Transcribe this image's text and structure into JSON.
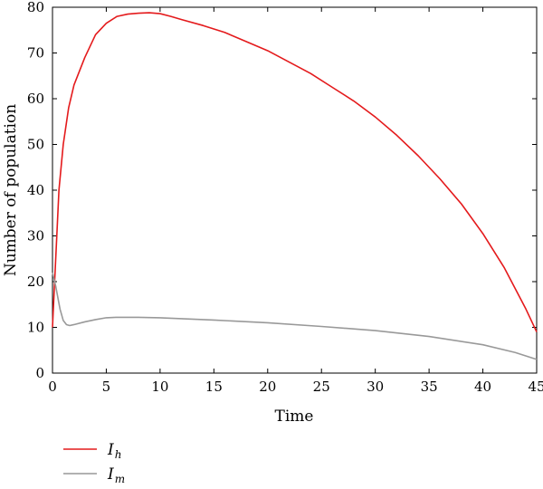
{
  "chart_data": {
    "type": "line",
    "title": "",
    "xlabel": "Time",
    "ylabel": "Number of population",
    "xlim": [
      0,
      45
    ],
    "ylim": [
      0,
      80
    ],
    "xticks": [
      "0",
      "5",
      "10",
      "15",
      "20",
      "25",
      "30",
      "35",
      "40",
      "45"
    ],
    "yticks": [
      "0",
      "10",
      "20",
      "30",
      "40",
      "50",
      "60",
      "70",
      "80"
    ],
    "grid": false,
    "legend_position": "bottom-left",
    "series": [
      {
        "name": "I_h",
        "legend_main": "I",
        "legend_sub": "h",
        "color": "#e41a1c",
        "points": [
          [
            0,
            10
          ],
          [
            0.2,
            20
          ],
          [
            0.4,
            30
          ],
          [
            0.6,
            40
          ],
          [
            1,
            50
          ],
          [
            1.5,
            58
          ],
          [
            2,
            63
          ],
          [
            3,
            69
          ],
          [
            4,
            74
          ],
          [
            5,
            76.5
          ],
          [
            6,
            78
          ],
          [
            7,
            78.5
          ],
          [
            8,
            78.7
          ],
          [
            9,
            78.8
          ],
          [
            10,
            78.6
          ],
          [
            11,
            78
          ],
          [
            12,
            77.3
          ],
          [
            14,
            76
          ],
          [
            16,
            74.5
          ],
          [
            18,
            72.5
          ],
          [
            20,
            70.5
          ],
          [
            22,
            68
          ],
          [
            24,
            65.5
          ],
          [
            26,
            62.5
          ],
          [
            28,
            59.5
          ],
          [
            30,
            56
          ],
          [
            32,
            52
          ],
          [
            34,
            47.5
          ],
          [
            36,
            42.5
          ],
          [
            38,
            37
          ],
          [
            40,
            30.5
          ],
          [
            42,
            23
          ],
          [
            44,
            14
          ],
          [
            45,
            9
          ]
        ]
      },
      {
        "name": "I_m",
        "legend_main": "I",
        "legend_sub": "m",
        "color": "#999999",
        "points": [
          [
            0,
            22
          ],
          [
            0.3,
            19
          ],
          [
            0.7,
            14
          ],
          [
            1,
            11.5
          ],
          [
            1.3,
            10.6
          ],
          [
            1.6,
            10.4
          ],
          [
            2,
            10.6
          ],
          [
            3,
            11.2
          ],
          [
            4,
            11.7
          ],
          [
            5,
            12.1
          ],
          [
            6,
            12.2
          ],
          [
            8,
            12.2
          ],
          [
            10,
            12.1
          ],
          [
            15,
            11.6
          ],
          [
            20,
            11
          ],
          [
            25,
            10.2
          ],
          [
            30,
            9.3
          ],
          [
            35,
            8
          ],
          [
            40,
            6.2
          ],
          [
            43,
            4.5
          ],
          [
            45,
            3
          ]
        ]
      }
    ]
  }
}
